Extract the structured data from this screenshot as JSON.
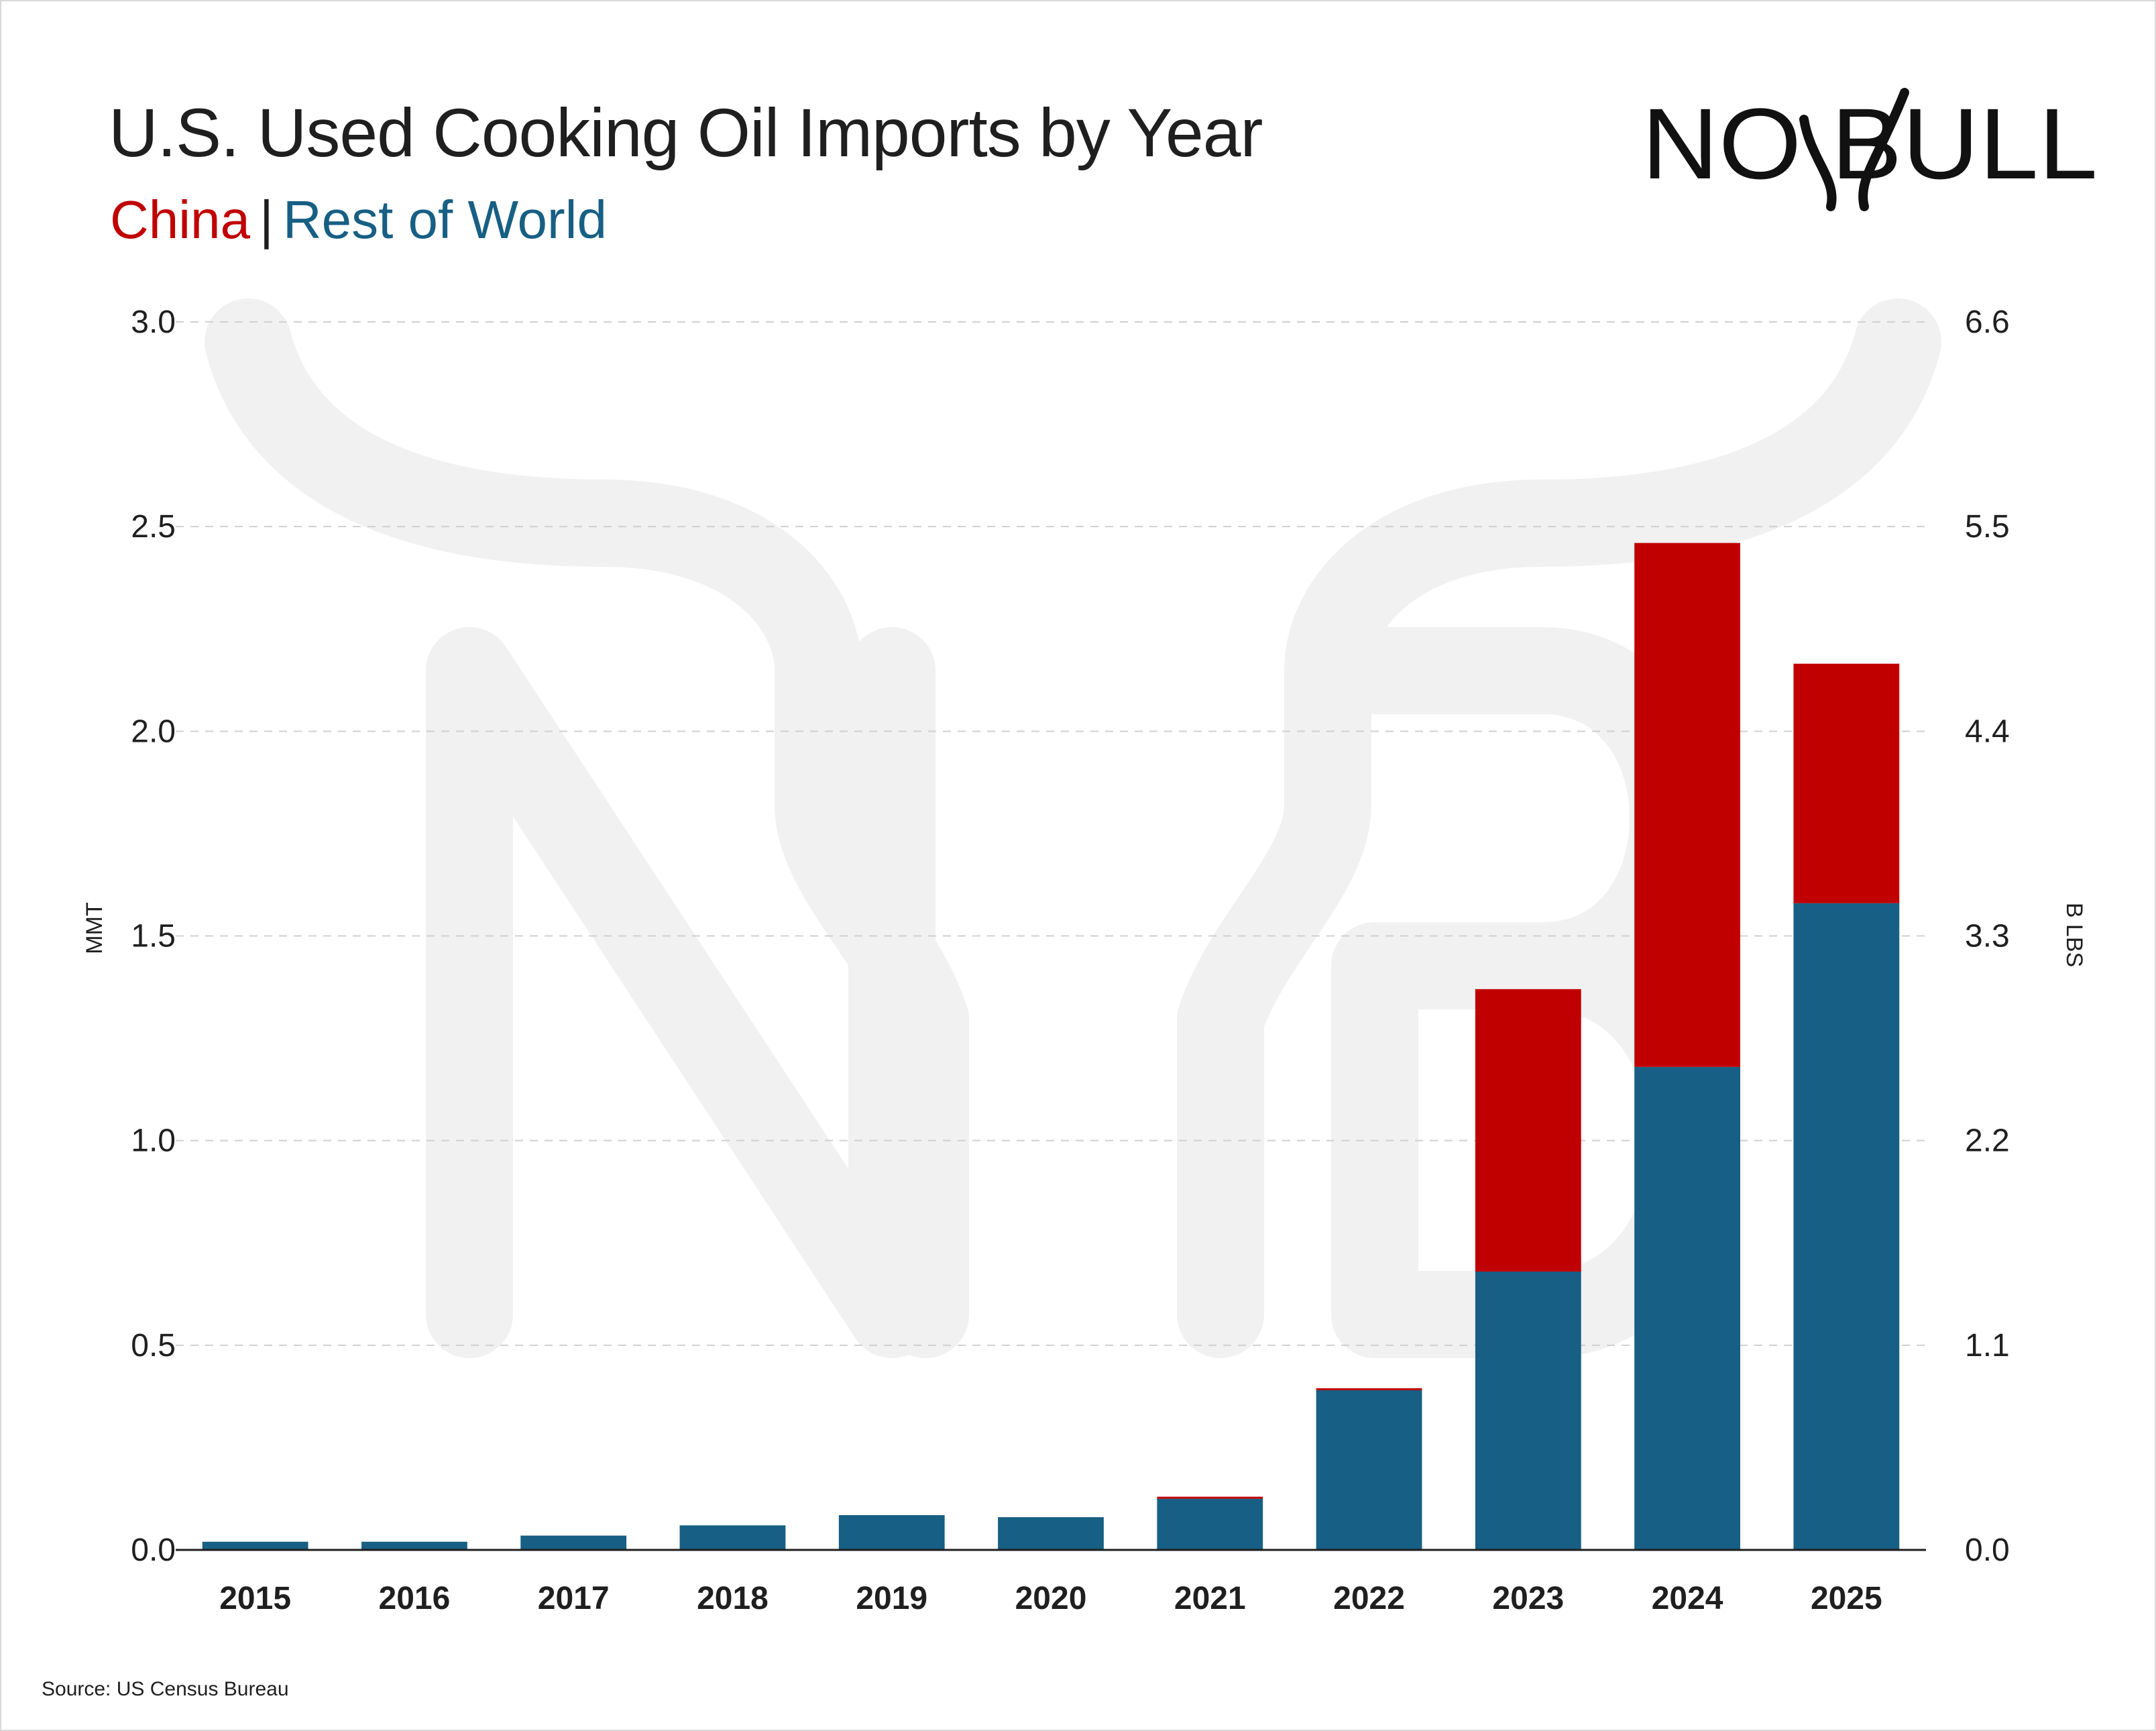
{
  "header": {
    "title": "U.S. Used Cooking Oil Imports by Year",
    "legend_china": "China",
    "legend_separator": "|",
    "legend_rest": "Rest of World"
  },
  "logo": {
    "text": "NO BULL",
    "icon": "bull-horns-logo"
  },
  "footer": {
    "source": "Source: US Census Bureau"
  },
  "colors": {
    "china": "#c00000",
    "rest_of_world": "#175f84",
    "grid": "#d0d0d0",
    "text": "#1f1f1f"
  },
  "chart_data": {
    "type": "bar",
    "stacked": true,
    "title": "U.S. Used Cooking Oil Imports by Year",
    "categories": [
      "2015",
      "2016",
      "2017",
      "2018",
      "2019",
      "2020",
      "2021",
      "2022",
      "2023",
      "2024",
      "2025"
    ],
    "series": [
      {
        "name": "Rest of World",
        "color": "#175f84",
        "values": [
          0.02,
          0.02,
          0.035,
          0.06,
          0.085,
          0.08,
          0.125,
          0.39,
          0.68,
          1.18,
          1.58
        ]
      },
      {
        "name": "China",
        "color": "#c00000",
        "values": [
          0,
          0,
          0,
          0,
          0,
          0,
          0.005,
          0.005,
          0.69,
          1.28,
          0.585
        ]
      }
    ],
    "ylabel": "MMT",
    "ylim": [
      0,
      3.0
    ],
    "yticks": [
      "0.0",
      "0.5",
      "1.0",
      "1.5",
      "2.0",
      "2.5",
      "3.0"
    ],
    "y2label": "B LBS",
    "y2ticks": [
      "0.0",
      "1.1",
      "2.2",
      "3.3",
      "4.4",
      "5.5",
      "6.6"
    ],
    "grid": true,
    "legend": "top-left"
  }
}
